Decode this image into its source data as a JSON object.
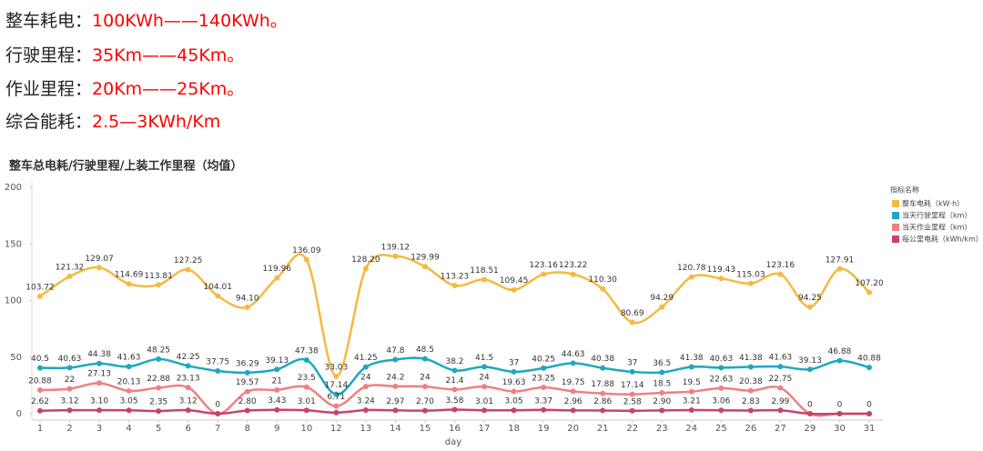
{
  "header_lines": [
    {
      "label": "整车耗电：",
      "value": "100KWh——140KWh。"
    },
    {
      "label": "行驶里程：",
      "value": "35Km——45Km。"
    },
    {
      "label": "作业里程：",
      "value": "20Km——25Km。"
    },
    {
      "label": "综合能耗：",
      "value": "2.5—3KWh/Km"
    }
  ],
  "chart_data": {
    "type": "line",
    "title": "整车总电耗/行驶里程/上装工作里程（均值）",
    "x_label": "day",
    "legend_title": "指标名称",
    "legend_position": "right",
    "categories": [
      "1",
      "2",
      "3",
      "4",
      "5",
      "6",
      "7",
      "8",
      "9",
      "10",
      "12",
      "13",
      "14",
      "15",
      "16",
      "17",
      "18",
      "19",
      "20",
      "21",
      "22",
      "23",
      "24",
      "25",
      "26",
      "27",
      "29",
      "30",
      "31"
    ],
    "ylim": [
      0,
      200
    ],
    "yticks": [
      0,
      50,
      100,
      150,
      200
    ],
    "series": [
      {
        "name": "整车电耗（kW·h）",
        "color": "#f5b942",
        "values": [
          103.72,
          121.32,
          129.07,
          114.69,
          113.81,
          127.25,
          104.01,
          94.1,
          119.96,
          136.09,
          33.03,
          128.2,
          139.12,
          129.99,
          113.23,
          118.51,
          109.45,
          123.16,
          123.22,
          110.3,
          80.69,
          94.29,
          120.78,
          119.43,
          115.03,
          123.16,
          94.25,
          127.91,
          107.2
        ],
        "value_labels": [
          "103.72",
          "121.32",
          "129.07",
          "114.69",
          "113.81",
          "127.25",
          "104.01",
          "94.10",
          "119.96",
          "136.09",
          "33.03",
          "128.20",
          "139.12",
          "129.99",
          "113.23",
          "118.51",
          "109.45",
          "123.16",
          "123.22",
          "110.30",
          "80.69",
          "94.29",
          "120.78",
          "119.43",
          "115.03",
          "123.16",
          "94.25",
          "127.91",
          "107.20"
        ]
      },
      {
        "name": "当天行驶里程（km）",
        "color": "#1ea8bf",
        "values": [
          40.5,
          40.63,
          44.38,
          41.63,
          48.25,
          42.25,
          37.75,
          36.29,
          39.13,
          47.38,
          17.14,
          41.25,
          47.8,
          48.5,
          38.2,
          41.5,
          37,
          40.25,
          44.63,
          40.38,
          37,
          36.5,
          41.38,
          40.63,
          41.38,
          41.63,
          39.13,
          46.88,
          40.88
        ],
        "value_labels": [
          "40.5",
          "40.63",
          "44.38",
          "41.63",
          "48.25",
          "42.25",
          "37.75",
          "36.29",
          "39.13",
          "47.38",
          "17.14",
          "41.25",
          "47.8",
          "48.5",
          "38.2",
          "41.5",
          "37",
          "40.25",
          "44.63",
          "40.38",
          "37",
          "36.5",
          "41.38",
          "40.63",
          "41.38",
          "41.63",
          "39.13",
          "46.88",
          "40.88"
        ]
      },
      {
        "name": "当天作业里程（km）",
        "color": "#f08080",
        "values": [
          20.88,
          22,
          27.13,
          20.13,
          22.88,
          23.13,
          0,
          19.57,
          21,
          23.5,
          6.71,
          24,
          24.2,
          24,
          21.4,
          24,
          19.63,
          23.25,
          19.75,
          17.88,
          17.14,
          18.5,
          19.5,
          22.63,
          20.38,
          22.75,
          0,
          0,
          0
        ],
        "value_labels": [
          "20.88",
          "22",
          "27.13",
          "20.13",
          "22.88",
          "23.13",
          "0",
          "19.57",
          "21",
          "23.5",
          "6.71",
          "24",
          "24.2",
          "24",
          "21.4",
          "24",
          "19.63",
          "23.25",
          "19.75",
          "17.88",
          "17.14",
          "18.5",
          "19.5",
          "22.63",
          "20.38",
          "22.75",
          "0",
          "0",
          "0"
        ]
      },
      {
        "name": "每公里电耗（kWh/km）",
        "color": "#c8436b",
        "values": [
          2.62,
          3.12,
          3.1,
          3.05,
          2.35,
          3.12,
          0,
          2.8,
          3.43,
          3.01,
          1,
          3.24,
          2.97,
          2.7,
          3.58,
          3.01,
          3.05,
          3.37,
          2.96,
          2.86,
          2.58,
          2.9,
          3.21,
          3.06,
          2.83,
          2.99,
          0,
          0,
          0
        ],
        "value_labels": [
          "2.62",
          "3.12",
          "3.10",
          "3.05",
          "2.35",
          "3.12",
          null,
          "2.80",
          "3.43",
          "3.01",
          null,
          "3.24",
          "2.97",
          "2.70",
          "3.58",
          "3.01",
          "3.05",
          "3.37",
          "2.96",
          "2.86",
          "2.58",
          "2.90",
          "3.21",
          "3.06",
          "2.83",
          "2.99",
          null,
          null,
          null
        ]
      }
    ]
  }
}
